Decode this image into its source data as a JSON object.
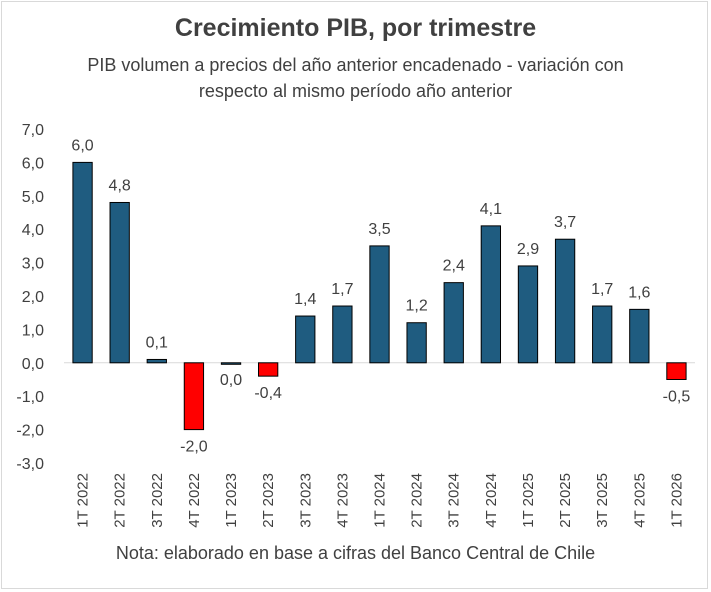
{
  "chart_data": {
    "type": "bar",
    "title": "Crecimiento PIB, por trimestre",
    "subtitle": "PIB volumen a precios del año anterior encadenado - variación con respecto al mismo período año anterior",
    "note": "Nota: elaborado en base a cifras del Banco Central de Chile",
    "categories": [
      "1T 2022",
      "2T 2022",
      "3T 2022",
      "4T 2022",
      "1T 2023",
      "2T 2023",
      "3T 2023",
      "4T 2023",
      "1T 2024",
      "2T 2024",
      "3T 2024",
      "4T 2024",
      "1T 2025",
      "2T 2025",
      "3T 2025",
      "4T 2025",
      "1T 2026"
    ],
    "values": [
      6.0,
      4.8,
      0.1,
      -2.0,
      0.0,
      -0.4,
      1.4,
      1.7,
      3.5,
      1.2,
      2.4,
      4.1,
      2.9,
      3.7,
      1.7,
      1.6,
      -0.5
    ],
    "data_labels": [
      "6,0",
      "4,8",
      "0,1",
      "-2,0",
      "0,0",
      "-0,4",
      "1,4",
      "1,7",
      "3,5",
      "1,2",
      "2,4",
      "4,1",
      "2,9",
      "3,7",
      "1,7",
      "1,6",
      "-0,5"
    ],
    "y_ticks": [
      "7,0",
      "6,0",
      "5,0",
      "4,0",
      "3,0",
      "2,0",
      "1,0",
      "0,0",
      "-1,0",
      "-2,0",
      "-3,0"
    ],
    "y_tick_values": [
      7,
      6,
      5,
      4,
      3,
      2,
      1,
      0,
      -1,
      -2,
      -3
    ],
    "ylim": [
      -3,
      7
    ],
    "xlabel": "",
    "ylabel": "",
    "grid": false,
    "colors": {
      "positive": "#1f5c80",
      "negative": "#ff0000",
      "bar_edge": "#000000",
      "text": "#404040"
    }
  }
}
